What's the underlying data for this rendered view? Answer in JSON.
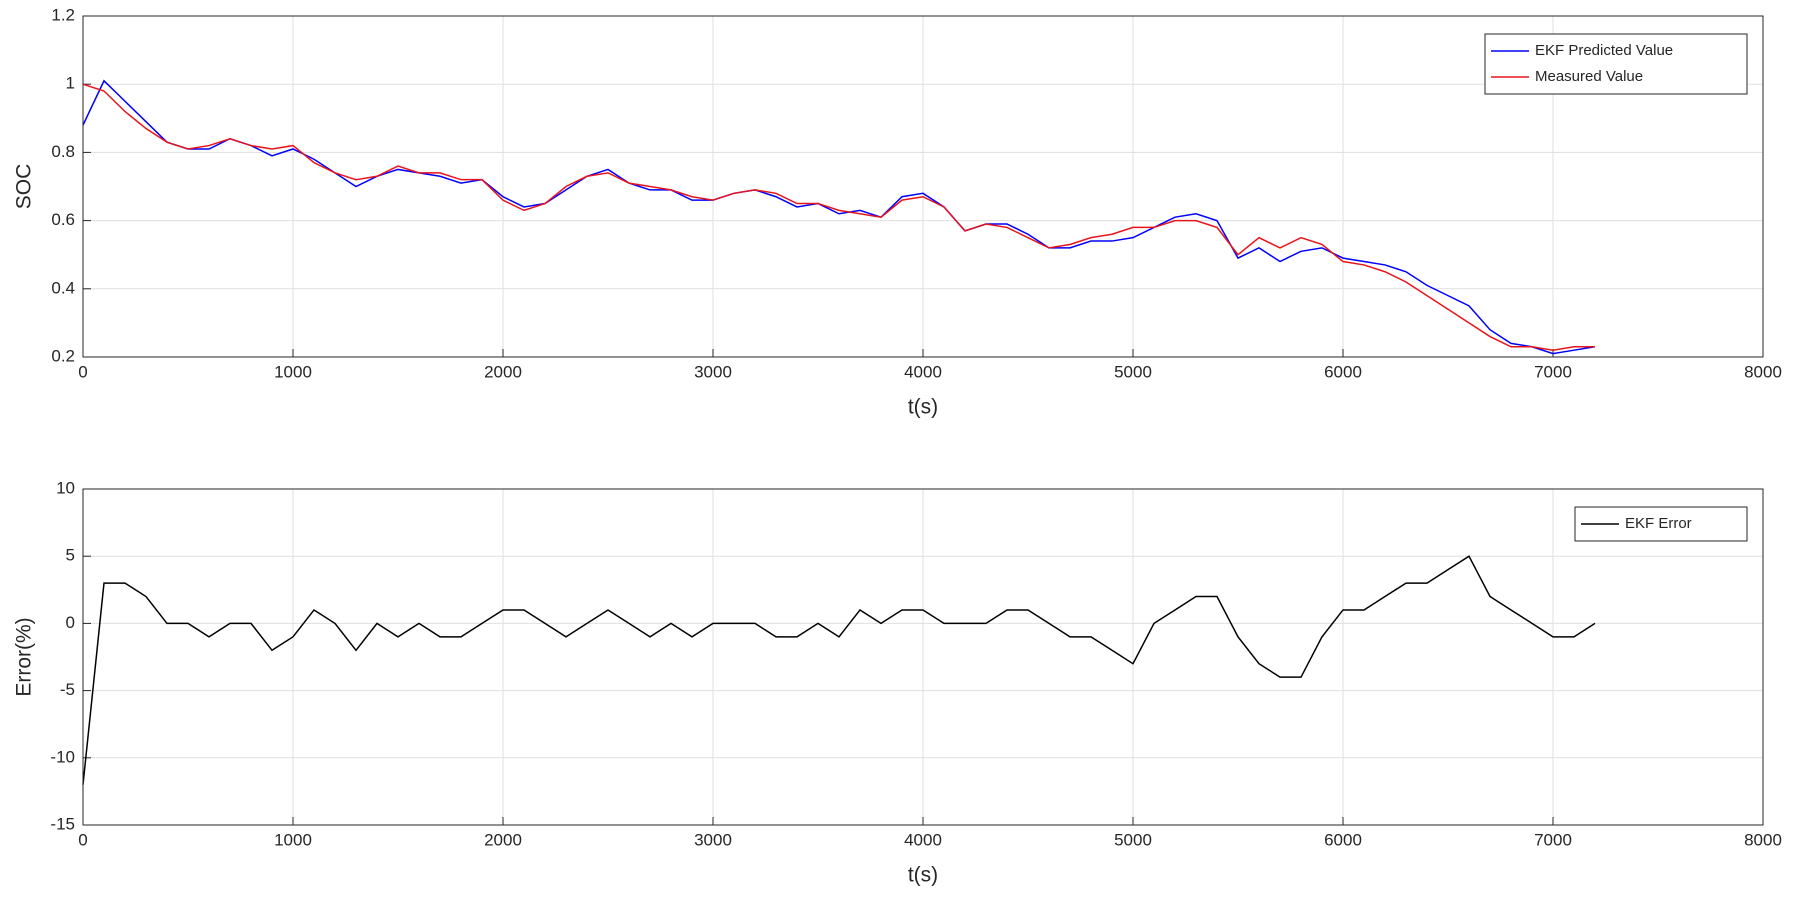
{
  "chart_data": [
    {
      "type": "line",
      "xlabel": "t(s)",
      "ylabel": "SOC",
      "grid": true,
      "legend": "upper right",
      "x": [
        0,
        100,
        200,
        300,
        400,
        500,
        600,
        700,
        800,
        900,
        1000,
        1100,
        1200,
        1300,
        1400,
        1500,
        1600,
        1700,
        1800,
        1900,
        2000,
        2100,
        2200,
        2300,
        2400,
        2500,
        2600,
        2700,
        2800,
        2900,
        3000,
        3100,
        3200,
        3300,
        3400,
        3500,
        3600,
        3700,
        3800,
        3900,
        4000,
        4100,
        4200,
        4300,
        4400,
        4500,
        4600,
        4700,
        4800,
        4900,
        5000,
        5100,
        5200,
        5300,
        5400,
        5500,
        5600,
        5700,
        5800,
        5900,
        6000,
        6100,
        6200,
        6300,
        6400,
        6500,
        6600,
        6700,
        6800,
        6900,
        7000,
        7100,
        7200
      ],
      "series": [
        {
          "name": "EKF Predicted Value",
          "color": "#0000ff",
          "values": [
            0.88,
            1.01,
            0.95,
            0.89,
            0.83,
            0.81,
            0.81,
            0.84,
            0.82,
            0.79,
            0.81,
            0.78,
            0.74,
            0.7,
            0.73,
            0.75,
            0.74,
            0.73,
            0.71,
            0.72,
            0.67,
            0.64,
            0.65,
            0.69,
            0.73,
            0.75,
            0.71,
            0.69,
            0.69,
            0.66,
            0.66,
            0.68,
            0.69,
            0.67,
            0.64,
            0.65,
            0.62,
            0.63,
            0.61,
            0.67,
            0.68,
            0.64,
            0.57,
            0.59,
            0.59,
            0.56,
            0.52,
            0.52,
            0.54,
            0.54,
            0.55,
            0.58,
            0.61,
            0.62,
            0.6,
            0.49,
            0.52,
            0.48,
            0.51,
            0.52,
            0.49,
            0.48,
            0.47,
            0.45,
            0.41,
            0.38,
            0.35,
            0.28,
            0.24,
            0.23,
            0.21,
            0.22,
            0.23
          ]
        },
        {
          "name": "Measured Value",
          "color": "#e8141c",
          "values": [
            1.0,
            0.98,
            0.92,
            0.87,
            0.83,
            0.81,
            0.82,
            0.84,
            0.82,
            0.81,
            0.82,
            0.77,
            0.74,
            0.72,
            0.73,
            0.76,
            0.74,
            0.74,
            0.72,
            0.72,
            0.66,
            0.63,
            0.65,
            0.7,
            0.73,
            0.74,
            0.71,
            0.7,
            0.69,
            0.67,
            0.66,
            0.68,
            0.69,
            0.68,
            0.65,
            0.65,
            0.63,
            0.62,
            0.61,
            0.66,
            0.67,
            0.64,
            0.57,
            0.59,
            0.58,
            0.55,
            0.52,
            0.53,
            0.55,
            0.56,
            0.58,
            0.58,
            0.6,
            0.6,
            0.58,
            0.5,
            0.55,
            0.52,
            0.55,
            0.53,
            0.48,
            0.47,
            0.45,
            0.42,
            0.38,
            0.34,
            0.3,
            0.26,
            0.23,
            0.23,
            0.22,
            0.23,
            0.23
          ]
        }
      ],
      "xlim": [
        0,
        8000
      ],
      "xticks": [
        0,
        1000,
        2000,
        3000,
        4000,
        5000,
        6000,
        7000,
        8000
      ],
      "ylim": [
        0.2,
        1.2
      ],
      "yticks": [
        0.2,
        0.4,
        0.6,
        0.8,
        1,
        1.2
      ]
    },
    {
      "type": "line",
      "xlabel": "t(s)",
      "ylabel": "Error(%)",
      "grid": true,
      "legend": "upper right",
      "x": [
        0,
        100,
        200,
        300,
        400,
        500,
        600,
        700,
        800,
        900,
        1000,
        1100,
        1200,
        1300,
        1400,
        1500,
        1600,
        1700,
        1800,
        1900,
        2000,
        2100,
        2200,
        2300,
        2400,
        2500,
        2600,
        2700,
        2800,
        2900,
        3000,
        3100,
        3200,
        3300,
        3400,
        3500,
        3600,
        3700,
        3800,
        3900,
        4000,
        4100,
        4200,
        4300,
        4400,
        4500,
        4600,
        4700,
        4800,
        4900,
        5000,
        5100,
        5200,
        5300,
        5400,
        5500,
        5600,
        5700,
        5800,
        5900,
        6000,
        6100,
        6200,
        6300,
        6400,
        6500,
        6600,
        6700,
        6800,
        6900,
        7000,
        7100,
        7200
      ],
      "series": [
        {
          "name": "EKF Error",
          "color": "#000000",
          "values": [
            -12,
            3,
            3,
            2,
            0,
            0,
            -1,
            0,
            0,
            -2,
            -1,
            1,
            0,
            -2,
            0,
            -1,
            0,
            -1,
            -1,
            0,
            1,
            1,
            0,
            -1,
            0,
            1,
            0,
            -1,
            0,
            -1,
            0,
            0,
            0,
            -1,
            -1,
            0,
            -1,
            1,
            0,
            1,
            1,
            0,
            0,
            0,
            1,
            1,
            0,
            -1,
            -1,
            -2,
            -3,
            0,
            1,
            2,
            2,
            -1,
            -3,
            -4,
            -4,
            -1,
            1,
            1,
            2,
            3,
            3,
            4,
            5,
            2,
            1,
            0,
            -1,
            -1,
            0
          ]
        }
      ],
      "xlim": [
        0,
        8000
      ],
      "xticks": [
        0,
        1000,
        2000,
        3000,
        4000,
        5000,
        6000,
        7000,
        8000
      ],
      "ylim": [
        -15,
        10
      ],
      "yticks": [
        -15,
        -10,
        -5,
        0,
        5,
        10
      ]
    }
  ]
}
